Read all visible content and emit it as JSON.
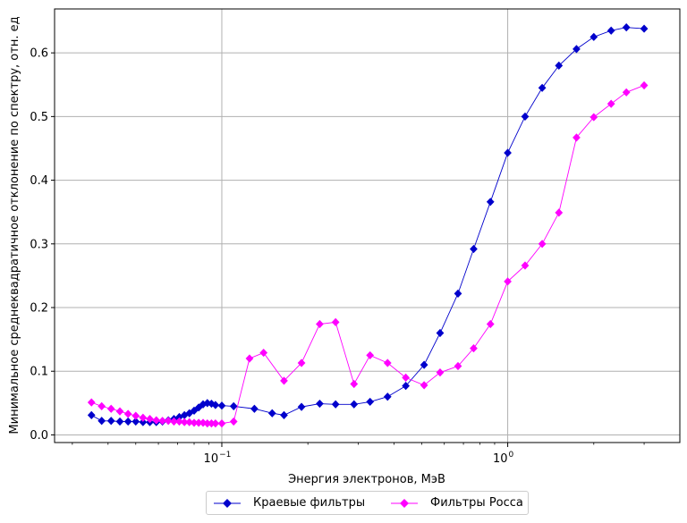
{
  "chart_data": {
    "type": "line",
    "title": "",
    "xlabel": "Энергия электронов, МэВ",
    "ylabel": "Минимальное среднеквадратичное отклонение по спектру, отн. ед",
    "xscale": "log",
    "xlim": [
      0.026,
      4.0
    ],
    "ylim": [
      -0.012,
      0.669
    ],
    "grid": true,
    "legend_position": "bottom-center-outside",
    "yticks": [
      0.0,
      0.1,
      0.2,
      0.3,
      0.4,
      0.5,
      0.6
    ],
    "ytick_labels": [
      "0.0",
      "0.1",
      "0.2",
      "0.3",
      "0.4",
      "0.5",
      "0.6"
    ],
    "xticks": [
      {
        "value": 0.1,
        "base": "10",
        "exp": "−1"
      },
      {
        "value": 1.0,
        "base": "10",
        "exp": "0"
      }
    ],
    "series": [
      {
        "name": "Краевые фильтры",
        "color": "#0000cc",
        "marker": "diamond",
        "x": [
          0.035,
          0.038,
          0.041,
          0.044,
          0.047,
          0.05,
          0.053,
          0.056,
          0.059,
          0.062,
          0.065,
          0.068,
          0.071,
          0.074,
          0.077,
          0.08,
          0.083,
          0.086,
          0.089,
          0.092,
          0.095,
          0.1,
          0.11,
          0.13,
          0.15,
          0.165,
          0.19,
          0.22,
          0.25,
          0.29,
          0.33,
          0.38,
          0.44,
          0.51,
          0.58,
          0.67,
          0.76,
          0.87,
          1.0,
          1.15,
          1.32,
          1.51,
          1.74,
          2.0,
          2.3,
          2.6,
          3.0
        ],
        "y": [
          0.031,
          0.022,
          0.022,
          0.021,
          0.021,
          0.021,
          0.02,
          0.02,
          0.02,
          0.021,
          0.023,
          0.025,
          0.028,
          0.031,
          0.034,
          0.038,
          0.043,
          0.048,
          0.05,
          0.049,
          0.047,
          0.046,
          0.045,
          0.041,
          0.034,
          0.031,
          0.044,
          0.049,
          0.048,
          0.048,
          0.052,
          0.06,
          0.077,
          0.11,
          0.16,
          0.222,
          0.292,
          0.366,
          0.443,
          0.5,
          0.545,
          0.58,
          0.606,
          0.625,
          0.635,
          0.64,
          0.638
        ]
      },
      {
        "name": "Фильтры Росса",
        "color": "#ff00ff",
        "marker": "diamond",
        "x": [
          0.035,
          0.038,
          0.041,
          0.044,
          0.047,
          0.05,
          0.053,
          0.056,
          0.059,
          0.062,
          0.065,
          0.068,
          0.071,
          0.074,
          0.077,
          0.08,
          0.083,
          0.086,
          0.089,
          0.092,
          0.095,
          0.1,
          0.11,
          0.125,
          0.14,
          0.165,
          0.19,
          0.22,
          0.25,
          0.29,
          0.33,
          0.38,
          0.44,
          0.51,
          0.58,
          0.67,
          0.76,
          0.87,
          1.0,
          1.15,
          1.32,
          1.51,
          1.74,
          2.0,
          2.3,
          2.6,
          3.0
        ],
        "y": [
          0.051,
          0.045,
          0.041,
          0.037,
          0.033,
          0.03,
          0.027,
          0.025,
          0.023,
          0.022,
          0.022,
          0.021,
          0.021,
          0.02,
          0.02,
          0.019,
          0.019,
          0.019,
          0.018,
          0.018,
          0.018,
          0.018,
          0.021,
          0.12,
          0.129,
          0.085,
          0.113,
          0.174,
          0.177,
          0.08,
          0.125,
          0.113,
          0.09,
          0.078,
          0.098,
          0.108,
          0.136,
          0.174,
          0.241,
          0.266,
          0.3,
          0.349,
          0.467,
          0.499,
          0.52,
          0.538,
          0.549
        ]
      }
    ]
  }
}
